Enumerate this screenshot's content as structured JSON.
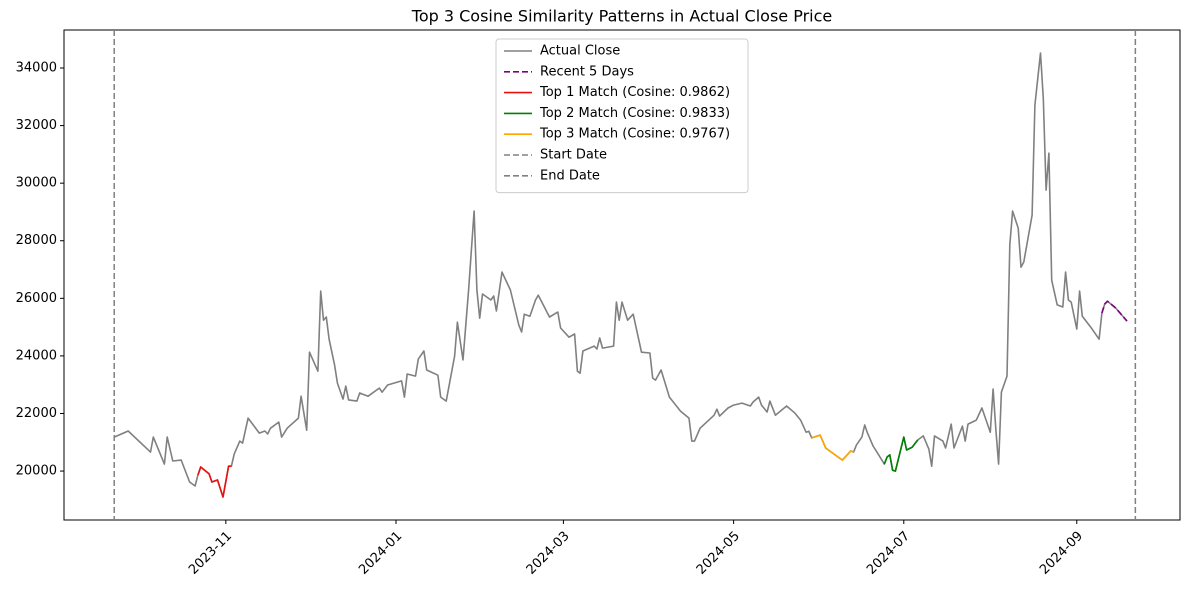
{
  "chart_data": {
    "type": "line",
    "title": "Top 3 Cosine Similarity Patterns in Actual Close Price",
    "xlim": [
      19604,
      20004
    ],
    "xticks": [
      {
        "value": 19662,
        "label": "2023-11"
      },
      {
        "value": 19723,
        "label": "2024-01"
      },
      {
        "value": 19783,
        "label": "2024-03"
      },
      {
        "value": 19844,
        "label": "2024-05"
      },
      {
        "value": 19905,
        "label": "2024-07"
      },
      {
        "value": 19967,
        "label": "2024-09"
      }
    ],
    "ylim": [
      18300,
      35320
    ],
    "yticks": [
      20000,
      22000,
      24000,
      26000,
      28000,
      30000,
      32000,
      34000
    ],
    "legend": "upper center",
    "series": [
      {
        "name": "Actual Close",
        "color": "#808080",
        "dash": "solid",
        "x": [
          19622,
          19627,
          19635,
          19636,
          19640,
          19641,
          19643,
          19646,
          19649,
          19651,
          19652,
          19653,
          19656,
          19657,
          19659,
          19661,
          19663,
          19664,
          19665,
          19667,
          19668,
          19670,
          19674,
          19676,
          19677,
          19678,
          19681,
          19682,
          19684,
          19688,
          19689,
          19691,
          19692,
          19695,
          19696,
          19697,
          19698,
          19699,
          19701,
          19702,
          19704,
          19705,
          19706,
          19709,
          19710,
          19713,
          19717,
          19718,
          19720,
          19725,
          19726,
          19727,
          19730,
          19731,
          19733,
          19734,
          19738,
          19739,
          19741,
          19744,
          19745,
          19747,
          19749,
          19751,
          19752,
          19753,
          19754,
          19757,
          19758,
          19759,
          19761,
          19764,
          19767,
          19768,
          19769,
          19771,
          19773,
          19774,
          19778,
          19781,
          19782,
          19785,
          19787,
          19788,
          19789,
          19790,
          19794,
          19795,
          19796,
          19797,
          19801,
          19802,
          19803,
          19804,
          19806,
          19808,
          19811,
          19814,
          19815,
          19816,
          19818,
          19821,
          19825,
          19828,
          19829,
          19830,
          19832,
          19837,
          19838,
          19839,
          19842,
          19844,
          19847,
          19850,
          19851,
          19853,
          19854,
          19856,
          19857,
          19859,
          19863,
          19866,
          19868,
          19870,
          19871,
          19872,
          19875,
          19877,
          19879,
          19881,
          19883,
          19886,
          19887,
          19888,
          19890,
          19891,
          19892,
          19894,
          19896,
          19898,
          19899,
          19900,
          19901,
          19902,
          19905,
          19906,
          19908,
          19910,
          19912,
          19914,
          19915,
          19916,
          19919,
          19920,
          19922,
          19923,
          19926,
          19927,
          19928,
          19931,
          19933,
          19936,
          19937,
          19938,
          19939,
          19940,
          19942,
          19943,
          19944,
          19946,
          19947,
          19948,
          19951,
          19952,
          19954,
          19955,
          19956,
          19957,
          19958,
          19960,
          19962,
          19963,
          19964,
          19965,
          19967,
          19968,
          19969,
          19972,
          19975,
          19976,
          19977,
          19978,
          19981,
          19985
        ],
        "values": [
          21180,
          21390,
          20660,
          21180,
          20240,
          21180,
          20350,
          20380,
          19620,
          19480,
          19860,
          20140,
          19900,
          19620,
          19690,
          19100,
          20170,
          20170,
          20590,
          21040,
          20970,
          21840,
          21320,
          21390,
          21290,
          21490,
          21700,
          21180,
          21490,
          21840,
          22600,
          21420,
          24130,
          23470,
          26250,
          25240,
          25350,
          24580,
          23680,
          23060,
          22500,
          22950,
          22470,
          22430,
          22710,
          22600,
          22880,
          22740,
          22990,
          23130,
          22570,
          23370,
          23300,
          23890,
          24170,
          23510,
          23330,
          22570,
          22430,
          23990,
          25170,
          23860,
          26290,
          29030,
          26290,
          25310,
          26150,
          25940,
          26080,
          25560,
          26910,
          26290,
          25070,
          24830,
          25450,
          25380,
          25940,
          26110,
          25350,
          25520,
          24970,
          24650,
          24760,
          23470,
          23400,
          24170,
          24340,
          24240,
          24620,
          24270,
          24340,
          25870,
          25240,
          25870,
          25240,
          25450,
          24130,
          24100,
          23230,
          23160,
          23510,
          22570,
          22080,
          21840,
          21040,
          21040,
          21490,
          21940,
          22150,
          21910,
          22190,
          22290,
          22360,
          22260,
          22400,
          22570,
          22290,
          22050,
          22430,
          21940,
          22260,
          22010,
          21770,
          21350,
          21380,
          21150,
          21250,
          20800,
          20660,
          20520,
          20380,
          20700,
          20660,
          20900,
          21180,
          21600,
          21320,
          20870,
          20560,
          20240,
          20490,
          20560,
          20030,
          20000,
          21180,
          20730,
          20830,
          21080,
          21220,
          20760,
          20170,
          21220,
          21040,
          20800,
          21630,
          20800,
          21560,
          21040,
          21630,
          21770,
          22190,
          21350,
          22850,
          21420,
          20240,
          22740,
          23300,
          27850,
          29030,
          28440,
          27080,
          27260,
          28890,
          32710,
          34520,
          32950,
          29760,
          31040,
          26630,
          25770,
          25700,
          26910,
          25940,
          25870,
          24930,
          26250,
          25380,
          25000,
          24580,
          25490,
          25800,
          25900,
          25660,
          25210
        ]
      },
      {
        "name": "Recent 5 Days",
        "color": "#800080",
        "dash": "dashed",
        "x": [
          19976,
          19977,
          19978,
          19981,
          19985
        ],
        "values": [
          25490,
          25800,
          25900,
          25660,
          25210
        ]
      },
      {
        "name": "Top 1 Match (Cosine: 0.9862)",
        "color": "#e8110f",
        "dash": "solid",
        "x": [
          19652,
          19653,
          19656,
          19657,
          19659,
          19661,
          19663,
          19664
        ],
        "values": [
          19860,
          20140,
          19900,
          19620,
          19690,
          19100,
          20170,
          20170
        ]
      },
      {
        "name": "Top 2 Match (Cosine: 0.9833)",
        "color": "#008000",
        "dash": "solid",
        "x": [
          19898,
          19899,
          19900,
          19901,
          19902,
          19905,
          19906,
          19908,
          19910
        ],
        "values": [
          20240,
          20490,
          20560,
          20030,
          20000,
          21180,
          20730,
          20830,
          21080
        ]
      },
      {
        "name": "Top 3 Match (Cosine: 0.9767)",
        "color": "#ffa500",
        "dash": "solid",
        "x": [
          19872,
          19875,
          19877,
          19879,
          19881,
          19883,
          19886,
          19887
        ],
        "values": [
          21150,
          21250,
          20800,
          20660,
          20520,
          20380,
          20700,
          20660
        ]
      }
    ],
    "vlines": [
      {
        "name": "Start Date",
        "color": "#808080",
        "dash": "dashed",
        "x": 19622
      },
      {
        "name": "End Date",
        "color": "#808080",
        "dash": "dashed",
        "x": 19988
      }
    ]
  }
}
